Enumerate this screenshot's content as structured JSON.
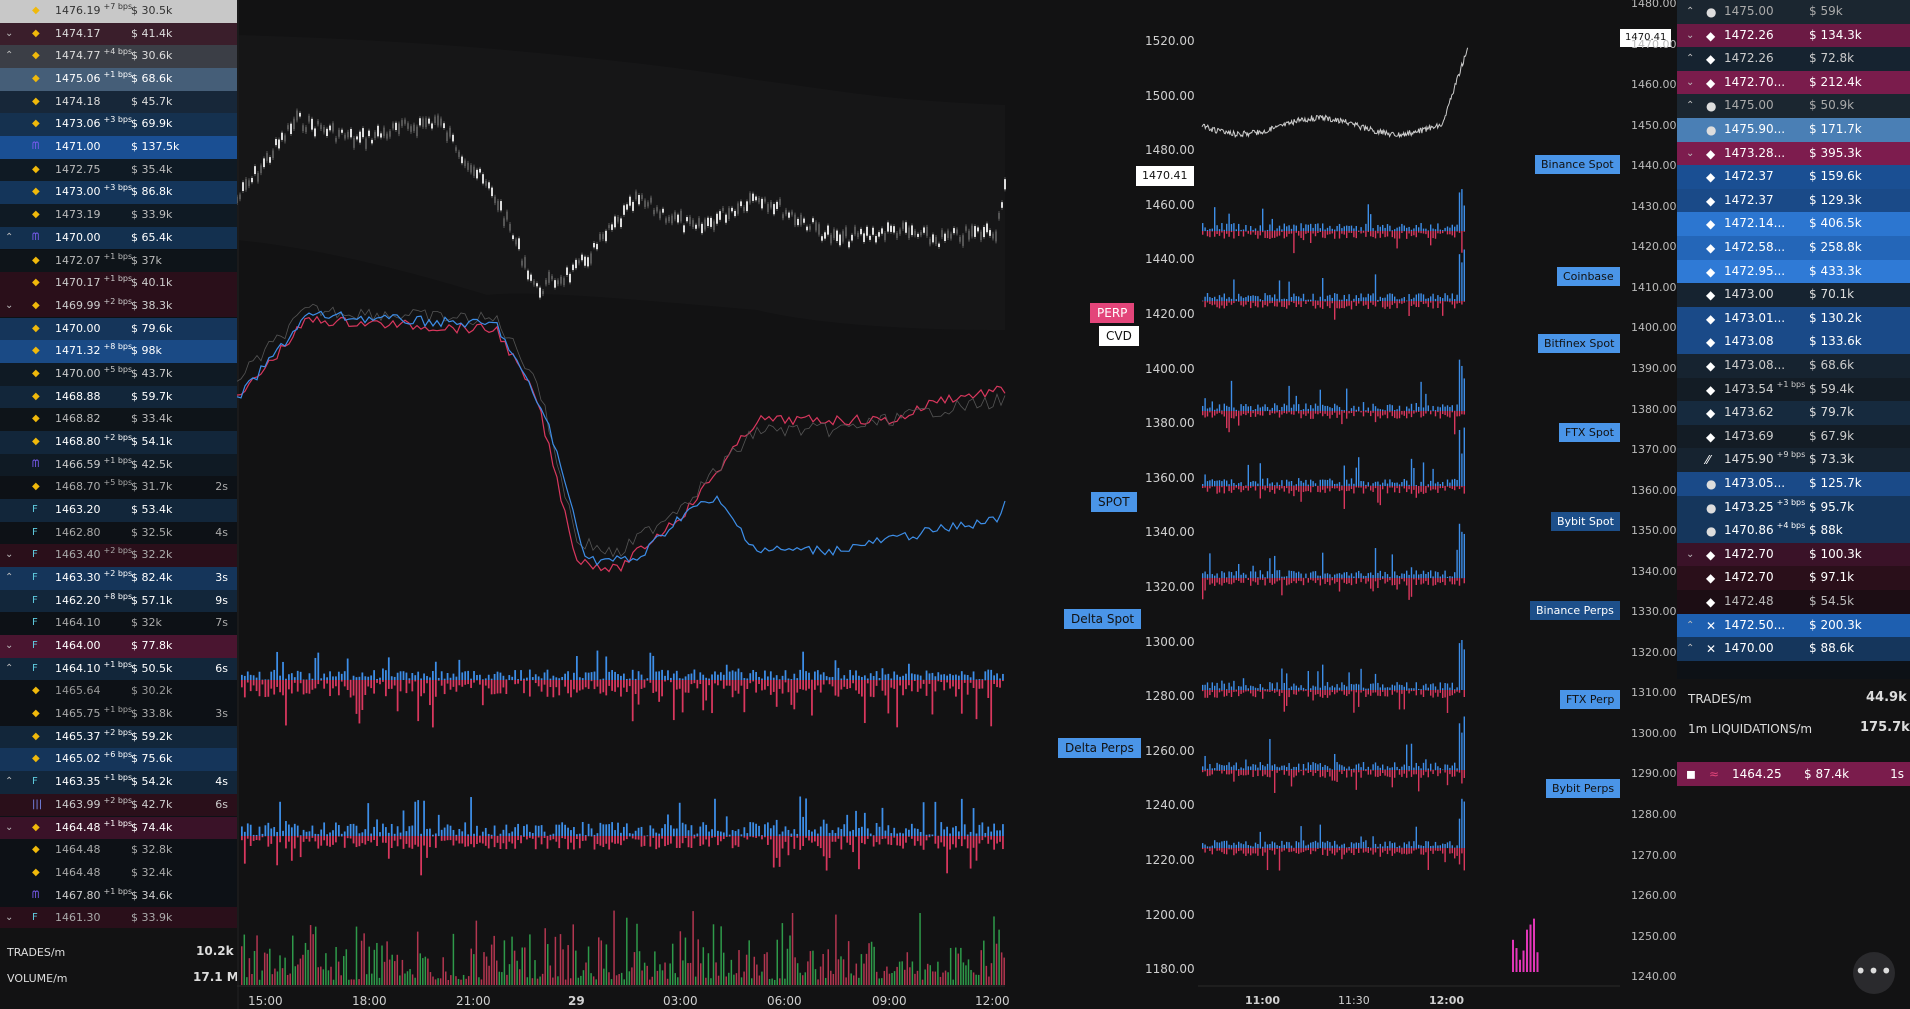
{
  "left_trades": [
    {
      "price": "1476.19",
      "bps": "+7 bps",
      "usd": "$ 30.5k",
      "age": "",
      "bg": "#c8c8c8",
      "fg": "#333",
      "ex": "binance",
      "chev": ""
    },
    {
      "price": "1474.17",
      "bps": "",
      "usd": "$ 41.4k",
      "age": "",
      "bg": "#3a1e2b",
      "fg": "#ddd",
      "ex": "binance",
      "chev": "v"
    },
    {
      "price": "1474.77",
      "bps": "+4 bps",
      "usd": "$ 30.6k",
      "age": "",
      "bg": "#3b3e46",
      "fg": "#ddd",
      "ex": "binance",
      "chev": "^"
    },
    {
      "price": "1475.06",
      "bps": "+1 bps",
      "usd": "$ 68.6k",
      "age": "",
      "bg": "#455e78",
      "fg": "#fff",
      "ex": "binance",
      "chev": ""
    },
    {
      "price": "1474.18",
      "bps": "",
      "usd": "$ 45.7k",
      "age": "",
      "bg": "#172739",
      "fg": "#ddd",
      "ex": "binance",
      "chev": ""
    },
    {
      "price": "1473.06",
      "bps": "+3 bps",
      "usd": "$ 69.9k",
      "age": "",
      "bg": "#15314f",
      "fg": "#fff",
      "ex": "binance",
      "chev": ""
    },
    {
      "price": "1471.00",
      "bps": "",
      "usd": "$ 137.5k",
      "age": "",
      "bg": "#1a4f93",
      "fg": "#fff",
      "ex": "kraken",
      "chev": ""
    },
    {
      "price": "1472.75",
      "bps": "",
      "usd": "$ 35.4k",
      "age": "",
      "bg": "#0f1a24",
      "fg": "#bbb",
      "ex": "binance",
      "chev": ""
    },
    {
      "price": "1473.00",
      "bps": "+3 bps",
      "usd": "$ 86.8k",
      "age": "",
      "bg": "#14355a",
      "fg": "#fff",
      "ex": "binance",
      "chev": ""
    },
    {
      "price": "1473.19",
      "bps": "",
      "usd": "$ 33.9k",
      "age": "",
      "bg": "#0f1a24",
      "fg": "#bbb",
      "ex": "binance",
      "chev": ""
    },
    {
      "price": "1470.00",
      "bps": "",
      "usd": "$ 65.4k",
      "age": "",
      "bg": "#13304f",
      "fg": "#fff",
      "ex": "kraken",
      "chev": "^"
    },
    {
      "price": "1472.07",
      "bps": "+1 bps",
      "usd": "$ 37k",
      "age": "",
      "bg": "#0e1419",
      "fg": "#bbb",
      "ex": "binance",
      "chev": ""
    },
    {
      "price": "1470.17",
      "bps": "+1 bps",
      "usd": "$ 40.1k",
      "age": "",
      "bg": "#2a0f1a",
      "fg": "#ccc",
      "ex": "binance",
      "chev": ""
    },
    {
      "price": "1469.99",
      "bps": "+2 bps",
      "usd": "$ 38.3k",
      "age": "",
      "bg": "#2a0f1a",
      "fg": "#ccc",
      "ex": "binance",
      "chev": "v"
    },
    {
      "price": "1470.00",
      "bps": "",
      "usd": "$ 79.6k",
      "age": "",
      "bg": "#15355a",
      "fg": "#fff",
      "ex": "binance",
      "chev": ""
    },
    {
      "price": "1471.32",
      "bps": "+8 bps",
      "usd": "$ 98k",
      "age": "",
      "bg": "#1a4a85",
      "fg": "#fff",
      "ex": "binance",
      "chev": ""
    },
    {
      "price": "1470.00",
      "bps": "+5 bps",
      "usd": "$ 43.7k",
      "age": "",
      "bg": "#0f1a24",
      "fg": "#ccc",
      "ex": "binance",
      "chev": ""
    },
    {
      "price": "1468.88",
      "bps": "",
      "usd": "$ 59.7k",
      "age": "",
      "bg": "#12263a",
      "fg": "#fff",
      "ex": "binance",
      "chev": ""
    },
    {
      "price": "1468.82",
      "bps": "",
      "usd": "$ 33.4k",
      "age": "",
      "bg": "#0e1419",
      "fg": "#bbb",
      "ex": "binance",
      "chev": ""
    },
    {
      "price": "1468.80",
      "bps": "+2 bps",
      "usd": "$ 54.1k",
      "age": "",
      "bg": "#12263a",
      "fg": "#fff",
      "ex": "binance",
      "chev": ""
    },
    {
      "price": "1466.59",
      "bps": "+1 bps",
      "usd": "$ 42.5k",
      "age": "",
      "bg": "#0f1a24",
      "fg": "#ccc",
      "ex": "kraken",
      "chev": ""
    },
    {
      "price": "1468.70",
      "bps": "+5 bps",
      "usd": "$ 31.7k",
      "age": "2s",
      "bg": "#0d1116",
      "fg": "#aaa",
      "ex": "binance",
      "chev": ""
    },
    {
      "price": "1463.20",
      "bps": "",
      "usd": "$ 53.4k",
      "age": "",
      "bg": "#12263a",
      "fg": "#fff",
      "ex": "ftx",
      "chev": ""
    },
    {
      "price": "1462.80",
      "bps": "",
      "usd": "$ 32.5k",
      "age": "4s",
      "bg": "#0d1116",
      "fg": "#aaa",
      "ex": "ftx",
      "chev": ""
    },
    {
      "price": "1463.40",
      "bps": "+2 bps",
      "usd": "$ 32.2k",
      "age": "",
      "bg": "#2a0f1a",
      "fg": "#aaa",
      "ex": "ftx",
      "chev": "v"
    },
    {
      "price": "1463.30",
      "bps": "+2 bps",
      "usd": "$ 82.4k",
      "age": "3s",
      "bg": "#15355a",
      "fg": "#fff",
      "ex": "ftx",
      "chev": "^"
    },
    {
      "price": "1462.20",
      "bps": "+8 bps",
      "usd": "$ 57.1k",
      "age": "9s",
      "bg": "#12263a",
      "fg": "#fff",
      "ex": "ftx",
      "chev": ""
    },
    {
      "price": "1464.10",
      "bps": "",
      "usd": "$ 32k",
      "age": "7s",
      "bg": "#0d1116",
      "fg": "#aaa",
      "ex": "ftx",
      "chev": ""
    },
    {
      "price": "1464.00",
      "bps": "",
      "usd": "$ 77.8k",
      "age": "",
      "bg": "#4a1530",
      "fg": "#fff",
      "ex": "ftx",
      "chev": "v"
    },
    {
      "price": "1464.10",
      "bps": "+1 bps",
      "usd": "$ 50.5k",
      "age": "6s",
      "bg": "#12263a",
      "fg": "#fff",
      "ex": "ftx",
      "chev": "^"
    },
    {
      "price": "1465.64",
      "bps": "",
      "usd": "$ 30.2k",
      "age": "",
      "bg": "#0d1116",
      "fg": "#999",
      "ex": "binance",
      "chev": ""
    },
    {
      "price": "1465.75",
      "bps": "+1 bps",
      "usd": "$ 33.8k",
      "age": "3s",
      "bg": "#0d1116",
      "fg": "#aaa",
      "ex": "binance",
      "chev": ""
    },
    {
      "price": "1465.37",
      "bps": "+2 bps",
      "usd": "$ 59.2k",
      "age": "",
      "bg": "#12263a",
      "fg": "#fff",
      "ex": "binance",
      "chev": ""
    },
    {
      "price": "1465.02",
      "bps": "+6 bps",
      "usd": "$ 75.6k",
      "age": "",
      "bg": "#15355a",
      "fg": "#fff",
      "ex": "binance",
      "chev": ""
    },
    {
      "price": "1463.35",
      "bps": "+1 bps",
      "usd": "$ 54.2k",
      "age": "4s",
      "bg": "#12263a",
      "fg": "#fff",
      "ex": "ftx",
      "chev": "^"
    },
    {
      "price": "1463.99",
      "bps": "+2 bps",
      "usd": "$ 42.7k",
      "age": "6s",
      "bg": "#2a0f1a",
      "fg": "#ccc",
      "ex": "bars",
      "chev": ""
    },
    {
      "price": "1464.48",
      "bps": "+1 bps",
      "usd": "$ 74.4k",
      "age": "",
      "bg": "#3a1228",
      "fg": "#fff",
      "ex": "binance",
      "chev": "v"
    },
    {
      "price": "1464.48",
      "bps": "",
      "usd": "$ 32.8k",
      "age": "",
      "bg": "#0d1116",
      "fg": "#aaa",
      "ex": "binance",
      "chev": ""
    },
    {
      "price": "1464.48",
      "bps": "",
      "usd": "$ 32.4k",
      "age": "",
      "bg": "#0d1116",
      "fg": "#aaa",
      "ex": "binance",
      "chev": ""
    },
    {
      "price": "1467.80",
      "bps": "+1 bps",
      "usd": "$ 34.6k",
      "age": "",
      "bg": "#0d1116",
      "fg": "#ccc",
      "ex": "kraken",
      "chev": ""
    },
    {
      "price": "1461.30",
      "bps": "",
      "usd": "$ 33.9k",
      "age": "",
      "bg": "#2a0f1a",
      "fg": "#aaa",
      "ex": "ftx",
      "chev": "v"
    }
  ],
  "left_stats": {
    "trades_label": "TRADES/m",
    "trades_value": "10.2k",
    "volume_label": "VOLUME/m",
    "volume_value": "17.1 M"
  },
  "right_trades": [
    {
      "price": "1475.00",
      "usd": "$ 59k",
      "bps": "",
      "bg": "#1b2630",
      "fg": "#aaa",
      "ex": "coin",
      "chev": "^"
    },
    {
      "price": "1472.26",
      "usd": "$ 134.3k",
      "bps": "",
      "bg": "#6b1a44",
      "fg": "#fff",
      "ex": "bitfinex",
      "chev": "v"
    },
    {
      "price": "1472.26",
      "usd": "$ 72.8k",
      "bps": "",
      "bg": "#162330",
      "fg": "#ccc",
      "ex": "bitfinex",
      "chev": "^"
    },
    {
      "price": "1472.70...",
      "usd": "$ 212.4k",
      "bps": "",
      "bg": "#7a1c4c",
      "fg": "#fff",
      "ex": "bitfinex",
      "chev": "v"
    },
    {
      "price": "1475.00",
      "usd": "$ 50.9k",
      "bps": "",
      "bg": "#1b2630",
      "fg": "#aaa",
      "ex": "coin",
      "chev": "^"
    },
    {
      "price": "1475.90...",
      "usd": "$ 171.7k",
      "bps": "",
      "bg": "#4a7fb5",
      "fg": "#fff",
      "ex": "coin",
      "chev": ""
    },
    {
      "price": "1473.28...",
      "usd": "$ 395.3k",
      "bps": "",
      "bg": "#7d1c4e",
      "fg": "#fff",
      "ex": "bitfinex",
      "chev": "v"
    },
    {
      "price": "1472.37",
      "usd": "$ 159.6k",
      "bps": "",
      "bg": "#1a4f93",
      "fg": "#fff",
      "ex": "bitfinex",
      "chev": ""
    },
    {
      "price": "1472.37",
      "usd": "$ 129.3k",
      "bps": "",
      "bg": "#1a4a88",
      "fg": "#fff",
      "ex": "bitfinex",
      "chev": ""
    },
    {
      "price": "1472.14...",
      "usd": "$ 406.5k",
      "bps": "",
      "bg": "#2c76d0",
      "fg": "#fff",
      "ex": "bitfinex",
      "chev": ""
    },
    {
      "price": "1472.58...",
      "usd": "$ 258.8k",
      "bps": "",
      "bg": "#2466b8",
      "fg": "#fff",
      "ex": "bitfinex",
      "chev": ""
    },
    {
      "price": "1472.95...",
      "usd": "$ 433.3k",
      "bps": "",
      "bg": "#2f7ad6",
      "fg": "#fff",
      "ex": "bitfinex",
      "chev": ""
    },
    {
      "price": "1473.00",
      "usd": "$ 70.1k",
      "bps": "",
      "bg": "#162330",
      "fg": "#ddd",
      "ex": "bitfinex",
      "chev": ""
    },
    {
      "price": "1473.01...",
      "usd": "$ 130.2k",
      "bps": "",
      "bg": "#1a4a88",
      "fg": "#fff",
      "ex": "bitfinex",
      "chev": ""
    },
    {
      "price": "1473.08",
      "usd": "$ 133.6k",
      "bps": "",
      "bg": "#1a4a88",
      "fg": "#fff",
      "ex": "bitfinex",
      "chev": ""
    },
    {
      "price": "1473.08...",
      "usd": "$ 68.6k",
      "bps": "",
      "bg": "#162330",
      "fg": "#ccc",
      "ex": "bitfinex",
      "chev": ""
    },
    {
      "price": "1473.54",
      "usd": "$ 59.4k",
      "bps": "+1 bps",
      "bg": "#131c25",
      "fg": "#ccc",
      "ex": "bitfinex",
      "chev": ""
    },
    {
      "price": "1473.62",
      "usd": "$ 79.7k",
      "bps": "",
      "bg": "#162a3e",
      "fg": "#ddd",
      "ex": "bitfinex",
      "chev": ""
    },
    {
      "price": "1473.69",
      "usd": "$ 67.9k",
      "bps": "",
      "bg": "#131c25",
      "fg": "#ccc",
      "ex": "bitfinex",
      "chev": ""
    },
    {
      "price": "1475.90",
      "usd": "$ 73.3k",
      "bps": "+9 bps",
      "bg": "#162330",
      "fg": "#ddd",
      "ex": "slash",
      "chev": ""
    },
    {
      "price": "1473.05...",
      "usd": "$ 125.7k",
      "bps": "",
      "bg": "#1a4a88",
      "fg": "#fff",
      "ex": "coin",
      "chev": ""
    },
    {
      "price": "1473.25",
      "usd": "$ 95.7k",
      "bps": "+3 bps",
      "bg": "#15365c",
      "fg": "#fff",
      "ex": "coin",
      "chev": ""
    },
    {
      "price": "1470.86",
      "usd": "$ 88k",
      "bps": "+4 bps",
      "bg": "#15365c",
      "fg": "#fff",
      "ex": "coin",
      "chev": ""
    },
    {
      "price": "1472.70",
      "usd": "$ 100.3k",
      "bps": "",
      "bg": "#3a1228",
      "fg": "#fff",
      "ex": "bitfinex",
      "chev": "v"
    },
    {
      "price": "1472.70",
      "usd": "$ 97.1k",
      "bps": "",
      "bg": "#2a0f1a",
      "fg": "#fff",
      "ex": "bitfinex",
      "chev": ""
    },
    {
      "price": "1472.48",
      "usd": "$ 54.5k",
      "bps": "",
      "bg": "#1c0d14",
      "fg": "#bbb",
      "ex": "bitfinex",
      "chev": ""
    },
    {
      "price": "1472.50...",
      "usd": "$ 200.3k",
      "bps": "",
      "bg": "#1e5fb0",
      "fg": "#fff",
      "ex": "x",
      "chev": "^"
    },
    {
      "price": "1470.00",
      "usd": "$ 88.6k",
      "bps": "",
      "bg": "#15365c",
      "fg": "#fff",
      "ex": "x",
      "chev": "^"
    }
  ],
  "right_stats": {
    "trades_label": "TRADES/m",
    "trades_value": "44.9k",
    "liq_label": "1m LIQUIDATIONS/m",
    "liq_value": "175.7k"
  },
  "liquidation": {
    "price": "1464.25",
    "usd": "$ 87.4k",
    "age": "1s"
  },
  "main_axis": {
    "ticks": [
      "1520.00",
      "1500.00",
      "1480.00",
      "1460.00",
      "1440.00",
      "1420.00",
      "1400.00",
      "1380.00",
      "1360.00",
      "1340.00",
      "1320.00",
      "1300.00",
      "1280.00",
      "1260.00",
      "1240.00",
      "1220.00",
      "1200.00",
      "1180.00"
    ],
    "current": "1470.41"
  },
  "main_x_labels": [
    "15:00",
    "18:00",
    "21:00",
    "29",
    "03:00",
    "06:00",
    "09:00",
    "12:00"
  ],
  "main_tags": {
    "perp": "PERP",
    "cvd": "CVD",
    "spot": "SPOT",
    "delta_spot": "Delta Spot",
    "delta_perps": "Delta Perps"
  },
  "mid_axis": {
    "ticks": [
      "1480.00",
      "1470.00",
      "1460.00",
      "1450.00",
      "1440.00",
      "1430.00",
      "1420.00",
      "1410.00",
      "1400.00",
      "1390.00",
      "1380.00",
      "1370.00",
      "1360.00",
      "1350.00",
      "1340.00",
      "1330.00",
      "1320.00",
      "1310.00",
      "1300.00",
      "1290.00",
      "1280.00",
      "1270.00",
      "1260.00",
      "1250.00",
      "1240.00"
    ],
    "current": "1470.41"
  },
  "mid_x_labels": [
    "11:00",
    "11:30",
    "12:00"
  ],
  "mid_tags": [
    "Binance Spot",
    "Coinbase",
    "Bitfinex Spot",
    "FTX Spot",
    "Bybit Spot",
    "Binance Perps",
    "FTX Perp",
    "Bybit Perps"
  ],
  "more_icon": "ellipsis-icon",
  "colors": {
    "up": "#3d8ee8",
    "down": "#d9375e",
    "perp_tag": "#e3457a",
    "spot_tag": "#4a95e8",
    "dark_tag": "#1d4f8a"
  }
}
